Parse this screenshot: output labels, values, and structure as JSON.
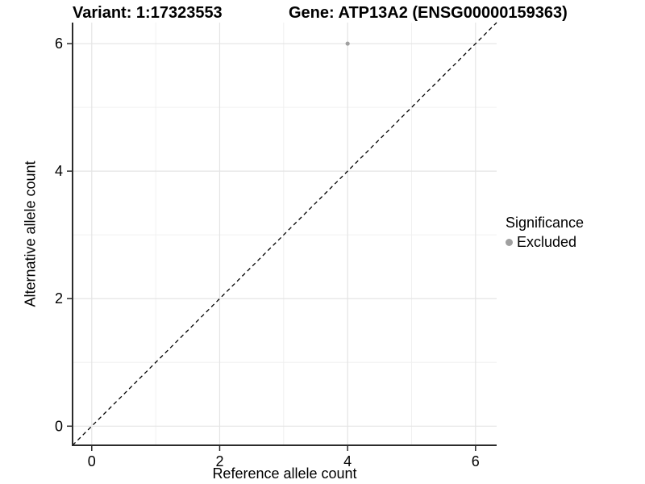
{
  "chart_data": {
    "type": "scatter",
    "title_left": "Variant: 1:17323553",
    "title_right": "Gene: ATP13A2 (ENSG00000159363)",
    "xlabel": "Reference allele count",
    "ylabel": "Alternative allele count",
    "xlim": [
      -0.3,
      6.33
    ],
    "ylim": [
      -0.3,
      6.33
    ],
    "x_ticks": [
      0,
      2,
      4,
      6
    ],
    "y_ticks": [
      0,
      2,
      4,
      6
    ],
    "x_minor_ticks": [
      1,
      3,
      5
    ],
    "y_minor_ticks": [
      1,
      3,
      5
    ],
    "grid": true,
    "series": [
      {
        "name": "Excluded",
        "color": "#a0a0a0",
        "points": [
          {
            "x": 4,
            "y": 6
          }
        ]
      }
    ],
    "reference_line": {
      "type": "identity",
      "slope": 1,
      "intercept": 0,
      "style": "dashed",
      "color": "#000000"
    },
    "legend": {
      "title": "Significance",
      "position": "right",
      "items": [
        {
          "label": "Excluded",
          "color": "#a0a0a0"
        }
      ]
    },
    "style": {
      "background": "#ffffff",
      "axis_line_color": "#2b2b2b",
      "tick_color": "#2b2b2b",
      "grid_major_color": "#e4e4e4",
      "grid_minor_color": "#f0f0f0",
      "tick_label_color": "#000000",
      "point_radius": 2.6
    }
  }
}
